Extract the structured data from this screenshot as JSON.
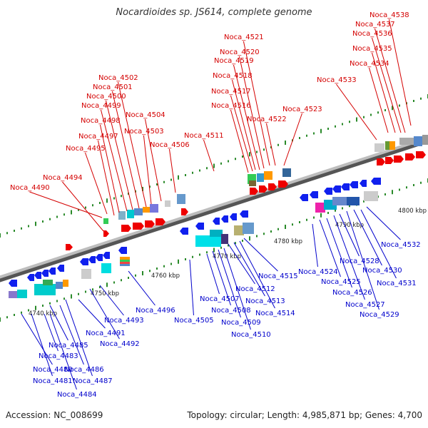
{
  "title": "Nocardioides sp. JS614, complete genome",
  "footer": {
    "accession": "Accession: NC_008699",
    "summary": "Topology: circular; Length: 4,985,871 bp; Genes: 4,700"
  },
  "colors": {
    "forward_label": "#d40000",
    "reverse_label": "#0000cc",
    "backbone": "#888888",
    "ticks": "#2a8a2a"
  },
  "kbp_labels": [
    "4740 kbp",
    "4750 kbp",
    "4760 kbp",
    "4770 kbp",
    "4780 kbp",
    "4790 kbp",
    "4800 kbp"
  ],
  "forward_genes": [
    "Noca_4490",
    "Noca_4494",
    "Noca_4495",
    "Noca_4497",
    "Noca_4498",
    "Noca_4499",
    "Noca_4500",
    "Noca_4501",
    "Noca_4502",
    "Noca_4503",
    "Noca_4504",
    "Noca_4506",
    "Noca_4511",
    "Noca_4516",
    "Noca_4517",
    "Noca_4518",
    "Noca_4519",
    "Noca_4520",
    "Noca_4521",
    "Noca_4522",
    "Noca_4523",
    "Noca_4533",
    "Noca_4534",
    "Noca_4535",
    "Noca_4536",
    "Noca_4537",
    "Noca_4538"
  ],
  "reverse_genes": [
    "Noca_4480",
    "Noca_4481",
    "Noca_4483",
    "Noca_4484",
    "Noca_4485",
    "Noca_4486",
    "Noca_4487",
    "Noca_4491",
    "Noca_4492",
    "Noca_4493",
    "Noca_4496",
    "Noca_4505",
    "Noca_4507",
    "Noca_4508",
    "Noca_4509",
    "Noca_4510",
    "Noca_4512",
    "Noca_4513",
    "Noca_4514",
    "Noca_4515",
    "Noca_4524",
    "Noca_4525",
    "Noca_4526",
    "Noca_4527",
    "Noca_4528",
    "Noca_4529",
    "Noca_4530",
    "Noca_4531",
    "Noca_4532"
  ]
}
